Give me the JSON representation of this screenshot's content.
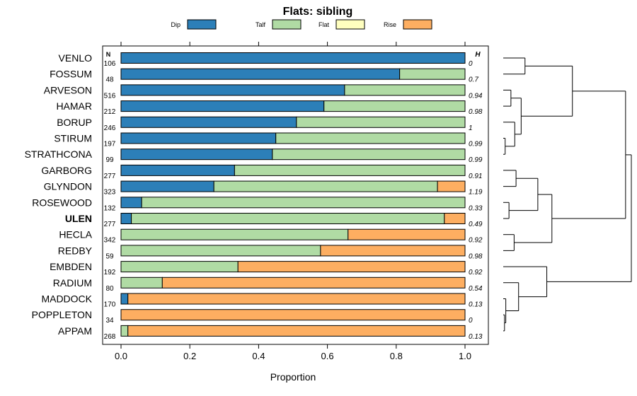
{
  "chart_data": {
    "type": "bar",
    "orientation": "horizontal",
    "stacked": true,
    "title": "Flats: sibling",
    "xlabel": "Proportion",
    "ylabel": "",
    "xlim": [
      0,
      1
    ],
    "xticks": [
      "0.0",
      "0.2",
      "0.4",
      "0.6",
      "0.8",
      "1.0"
    ],
    "grid": false,
    "legend_position": "top",
    "n_header": "N",
    "h_header": "H",
    "highlight": "ULEN",
    "series": [
      {
        "name": "Dip",
        "color": "#2c7fb8"
      },
      {
        "name": "Talf",
        "color": "#b0dba4"
      },
      {
        "name": "Flat",
        "color": "#ffffbf"
      },
      {
        "name": "Rise",
        "color": "#fdae61"
      }
    ],
    "categories": [
      "VENLO",
      "FOSSUM",
      "ARVESON",
      "HAMAR",
      "BORUP",
      "STIRUM",
      "STRATHCONA",
      "GARBORG",
      "GLYNDON",
      "ROSEWOOD",
      "ULEN",
      "HECLA",
      "REDBY",
      "EMBDEN",
      "RADIUM",
      "MADDOCK",
      "POPPLETON",
      "APPAM"
    ],
    "values": [
      [
        1.0,
        0.0,
        0.0,
        0.0
      ],
      [
        0.81,
        0.19,
        0.0,
        0.0
      ],
      [
        0.65,
        0.35,
        0.0,
        0.0
      ],
      [
        0.59,
        0.41,
        0.0,
        0.0
      ],
      [
        0.51,
        0.49,
        0.0,
        0.0
      ],
      [
        0.45,
        0.55,
        0.0,
        0.0
      ],
      [
        0.44,
        0.56,
        0.0,
        0.0
      ],
      [
        0.33,
        0.67,
        0.0,
        0.0
      ],
      [
        0.27,
        0.65,
        0.0,
        0.08
      ],
      [
        0.06,
        0.94,
        0.0,
        0.0
      ],
      [
        0.03,
        0.91,
        0.0,
        0.06
      ],
      [
        0.0,
        0.66,
        0.0,
        0.34
      ],
      [
        0.0,
        0.58,
        0.0,
        0.42
      ],
      [
        0.0,
        0.34,
        0.0,
        0.66
      ],
      [
        0.0,
        0.12,
        0.0,
        0.88
      ],
      [
        0.02,
        0.0,
        0.0,
        0.98
      ],
      [
        0.0,
        0.0,
        0.0,
        1.0
      ],
      [
        0.0,
        0.02,
        0.0,
        0.98
      ]
    ],
    "n": [
      "106",
      "48",
      "516",
      "212",
      "246",
      "197",
      "99",
      "277",
      "323",
      "132",
      "277",
      "342",
      "59",
      "192",
      "80",
      "170",
      "34",
      "268"
    ],
    "h": [
      "0",
      "0.7",
      "0.94",
      "0.98",
      "1",
      "0.99",
      "0.99",
      "0.91",
      "1.19",
      "0.33",
      "0.49",
      "0.92",
      "0.98",
      "0.92",
      "0.54",
      "0.13",
      "0",
      "0.13"
    ],
    "dendrogram": {
      "merges": [
        [
          16,
          17,
          0.01
        ],
        [
          5,
          6,
          0.015
        ],
        [
          15,
          "m0",
          0.02
        ],
        [
          9,
          10,
          0.045
        ],
        [
          11,
          12,
          0.085
        ],
        [
          4,
          "m1",
          0.09
        ],
        [
          0,
          1,
          0.17
        ],
        [
          2,
          3,
          0.06
        ],
        [
          14,
          "m2",
          0.12
        ],
        [
          7,
          8,
          0.1
        ],
        [
          "m7",
          "m5",
          0.14
        ],
        [
          "m9",
          "m3",
          0.27
        ],
        [
          "m10",
          "m6",
          0.54
        ],
        [
          13,
          "m8",
          0.34
        ],
        [
          "m11",
          "m4",
          0.38
        ],
        [
          "m12",
          "m14",
          0.955
        ],
        [
          "m15",
          "m13",
          1.0
        ]
      ]
    }
  }
}
